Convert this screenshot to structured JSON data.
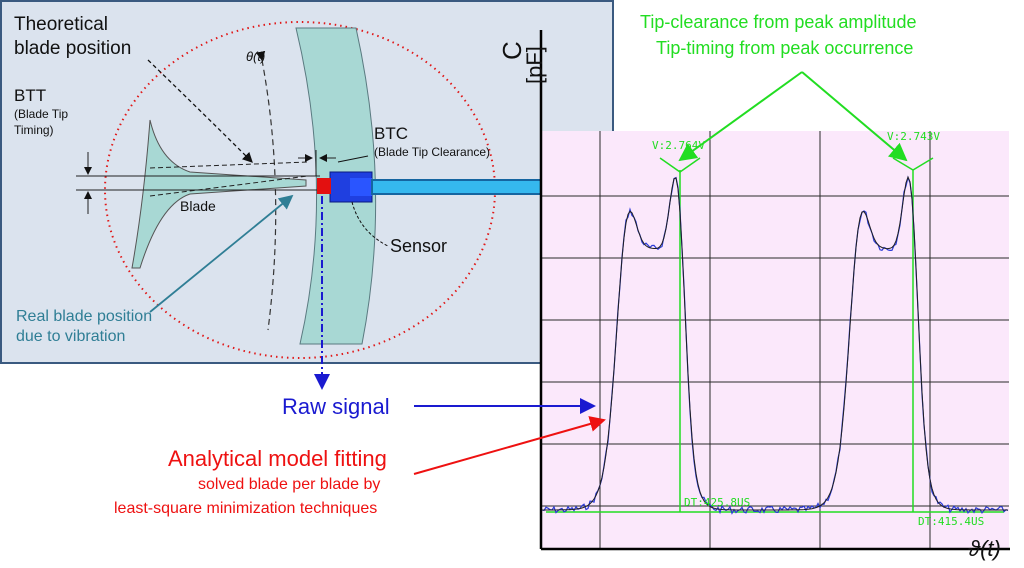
{
  "panel": {
    "theoretical_line1": "Theoretical",
    "theoretical_line2": "blade position",
    "btt_title": "BTT",
    "btt_sub1": "(Blade Tip",
    "btt_sub2": "Timing)",
    "theta_label": "θ(t)",
    "btc_title": "BTC",
    "btc_sub": "(Blade Tip Clearance)",
    "blade_label": "Blade",
    "sensor_label": "Sensor",
    "real_line1": "Real blade position",
    "real_line2": "due to vibration"
  },
  "annotations": {
    "tip_clearance": "Tip-clearance from peak amplitude",
    "tip_timing": "Tip-timing from peak occurrence",
    "raw_signal": "Raw signal",
    "model_title": "Analytical model fitting",
    "model_sub1": "solved blade per blade by",
    "model_sub2": "least-square minimization techniques"
  },
  "chart_data": {
    "type": "line",
    "ylabel_top": "C",
    "ylabel_unit": "[pF]",
    "xlabel": "ϑ(t)",
    "peak1_label": "V:2.764V",
    "peak2_label": "V:2.743V",
    "dt1_label": "DT:425.8US",
    "dt2_label": "DT:415.4US",
    "series": [
      {
        "name": "",
        "kind": "raw-signal",
        "peaks": [
          2.764,
          2.743
        ]
      },
      {
        "name": "",
        "kind": "model-fit"
      }
    ]
  },
  "colors": {
    "panel_bg": "#dbe3ee",
    "panel_border": "#3a5a80",
    "blade": "#a8d8d4",
    "plot_bg": "#fbe8fb",
    "green": "#22dd22",
    "red": "#ee1111",
    "blue": "#1a1ad0",
    "teal": "#2f7e95"
  }
}
